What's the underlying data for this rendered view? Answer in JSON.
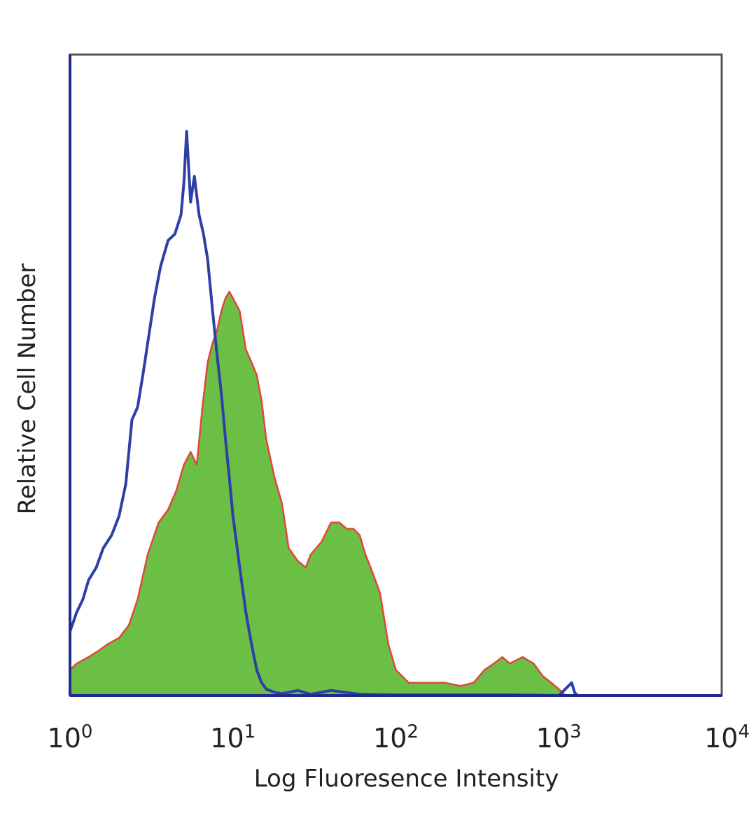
{
  "chart_data": {
    "type": "area",
    "title": "",
    "xlabel": "Log Fluoresence Intensity",
    "ylabel": "Relative Cell Number",
    "x_scale": "log",
    "xlim": [
      1,
      10000
    ],
    "ylim": [
      0,
      100
    ],
    "grid": false,
    "x_ticks": [
      {
        "base": "10",
        "exp": "0",
        "value": 1
      },
      {
        "base": "10",
        "exp": "1",
        "value": 10
      },
      {
        "base": "10",
        "exp": "2",
        "value": 100
      },
      {
        "base": "10",
        "exp": "3",
        "value": 1000
      },
      {
        "base": "10",
        "exp": "4",
        "value": 10000
      }
    ],
    "colors": {
      "frame": "#555555",
      "axis": "#1f2a8a",
      "control_line": "#2f3fa8",
      "stained_fill": "#6cbf45",
      "stained_line": "#e0463a"
    },
    "series": [
      {
        "style": "outline",
        "x": [
          1.0,
          1.1,
          1.2,
          1.3,
          1.45,
          1.6,
          1.8,
          2.0,
          2.2,
          2.4,
          2.6,
          2.8,
          3.0,
          3.3,
          3.6,
          4.0,
          4.4,
          4.8,
          5.0,
          5.2,
          5.5,
          5.8,
          6.2,
          6.6,
          7.0,
          7.5,
          8.0,
          8.5,
          9.0,
          9.5,
          10.0,
          11.0,
          12.0,
          13.0,
          14.0,
          15.0,
          16.0,
          18.0,
          20.0,
          25.0,
          30.0,
          40.0,
          60.0,
          100.0,
          200.0,
          500.0,
          1000.0,
          1200.0,
          1250.0,
          1300.0,
          2000.0,
          10000.0
        ],
        "y": [
          10,
          13,
          15,
          18,
          20,
          23,
          25,
          28,
          33,
          43,
          45,
          50,
          55,
          62,
          67,
          71,
          72,
          75,
          80,
          88,
          77,
          81,
          75,
          72,
          68,
          60,
          53,
          47,
          40,
          34,
          28,
          20,
          13,
          8,
          4,
          2,
          1,
          0.5,
          0.3,
          0.8,
          0.2,
          0.8,
          0.2,
          0.1,
          0.1,
          0.1,
          0,
          2,
          0.5,
          0,
          0,
          0
        ]
      },
      {
        "style": "filled",
        "x": [
          1.0,
          1.1,
          1.3,
          1.5,
          1.7,
          2.0,
          2.3,
          2.6,
          3.0,
          3.5,
          4.0,
          4.5,
          5.0,
          5.5,
          6.0,
          6.5,
          7.0,
          7.5,
          8.0,
          8.5,
          9.0,
          9.5,
          10.0,
          11.0,
          12.0,
          13.0,
          14.0,
          15.0,
          16.0,
          18.0,
          20.0,
          22.0,
          25.0,
          28.0,
          30.0,
          35.0,
          40.0,
          45.0,
          50.0,
          55.0,
          60.0,
          65.0,
          70.0,
          80.0,
          90.0,
          100.0,
          120.0,
          150.0,
          200.0,
          250.0,
          300.0,
          350.0,
          400.0,
          450.0,
          500.0,
          600.0,
          700.0,
          800.0,
          900.0,
          1000.0,
          1100.0,
          10000.0
        ],
        "y": [
          4,
          5,
          6,
          7,
          8,
          9,
          11,
          15,
          22,
          27,
          29,
          32,
          36,
          38,
          36,
          45,
          52,
          55,
          57,
          60,
          62,
          63,
          62,
          60,
          54,
          52,
          50,
          46,
          40,
          34,
          30,
          23,
          21,
          20,
          22,
          24,
          27,
          27,
          26,
          26,
          25,
          22,
          20,
          16,
          8,
          4,
          2,
          2,
          2,
          1.5,
          2,
          4,
          5,
          6,
          5,
          6,
          5,
          3,
          2,
          1,
          0,
          0
        ]
      }
    ]
  }
}
